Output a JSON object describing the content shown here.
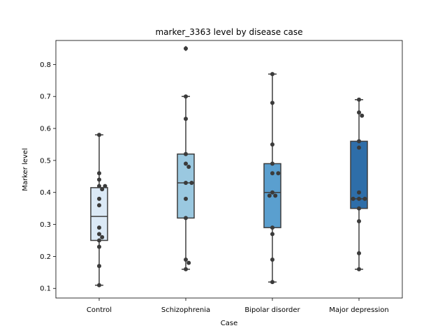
{
  "chart_data": {
    "type": "box",
    "title": "marker_3363 level by disease case",
    "xlabel": "Case",
    "ylabel": "Marker level",
    "ylim": [
      0.07,
      0.875
    ],
    "yticks": [
      0.1,
      0.2,
      0.3,
      0.4,
      0.5,
      0.6,
      0.7,
      0.8
    ],
    "ytick_labels": [
      "0.1",
      "0.2",
      "0.3",
      "0.4",
      "0.5",
      "0.6",
      "0.7",
      "0.8"
    ],
    "grid": false,
    "categories": [
      "Control",
      "Schizophrenia",
      "Bipolar disorder",
      "Major depression"
    ],
    "box_colors": [
      "#dbe9f6",
      "#9ac8e0",
      "#5a9fcf",
      "#2e6ea9"
    ],
    "point_color": "#3b3b3b",
    "boxes": [
      {
        "category": "Control",
        "whisker_low": 0.11,
        "q1": 0.25,
        "median": 0.325,
        "q3": 0.415,
        "whisker_high": 0.58,
        "outliers": []
      },
      {
        "category": "Schizophrenia",
        "whisker_low": 0.16,
        "q1": 0.32,
        "median": 0.43,
        "q3": 0.52,
        "whisker_high": 0.7,
        "outliers": [
          0.85
        ]
      },
      {
        "category": "Bipolar disorder",
        "whisker_low": 0.12,
        "q1": 0.29,
        "median": 0.4,
        "q3": 0.49,
        "whisker_high": 0.77,
        "outliers": []
      },
      {
        "category": "Major depression",
        "whisker_low": 0.16,
        "q1": 0.35,
        "median": 0.38,
        "q3": 0.56,
        "whisker_high": 0.69,
        "outliers": []
      }
    ],
    "points": [
      {
        "category": "Control",
        "values": [
          0.58,
          0.46,
          0.44,
          0.42,
          0.42,
          0.41,
          0.38,
          0.36,
          0.29,
          0.27,
          0.26,
          0.25,
          0.23,
          0.17,
          0.11
        ]
      },
      {
        "category": "Schizophrenia",
        "values": [
          0.85,
          0.7,
          0.63,
          0.52,
          0.49,
          0.48,
          0.43,
          0.43,
          0.38,
          0.32,
          0.19,
          0.18,
          0.16
        ]
      },
      {
        "category": "Bipolar disorder",
        "values": [
          0.77,
          0.68,
          0.55,
          0.49,
          0.46,
          0.46,
          0.4,
          0.39,
          0.39,
          0.29,
          0.27,
          0.19,
          0.12
        ]
      },
      {
        "category": "Major depression",
        "values": [
          0.69,
          0.65,
          0.64,
          0.56,
          0.54,
          0.4,
          0.38,
          0.38,
          0.38,
          0.35,
          0.31,
          0.21,
          0.16
        ]
      }
    ]
  }
}
